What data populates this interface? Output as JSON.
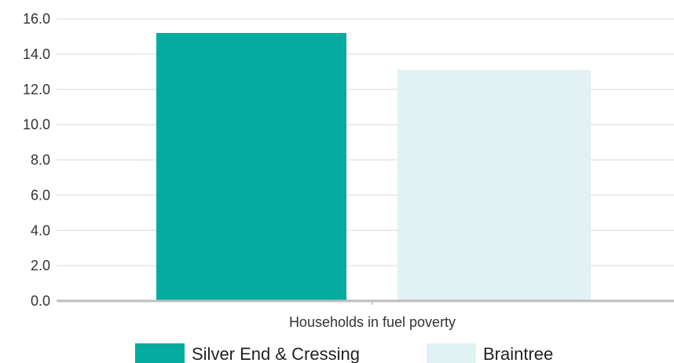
{
  "chart_data": {
    "type": "bar",
    "categories": [
      "Households in fuel poverty"
    ],
    "series": [
      {
        "name": "Silver End & Cressing",
        "values": [
          15.2
        ],
        "color": "#03ac9f"
      },
      {
        "name": "Braintree",
        "values": [
          13.1
        ],
        "color": "#e2f1f1"
      }
    ],
    "y_ticks": [
      "0.0",
      "2.0",
      "4.0",
      "6.0",
      "8.0",
      "10.0",
      "12.0",
      "14.0",
      "16.0"
    ],
    "ylim": [
      0,
      16
    ],
    "grid": true,
    "legend_position": "bottom",
    "title": "",
    "xlabel": "",
    "ylabel": ""
  }
}
